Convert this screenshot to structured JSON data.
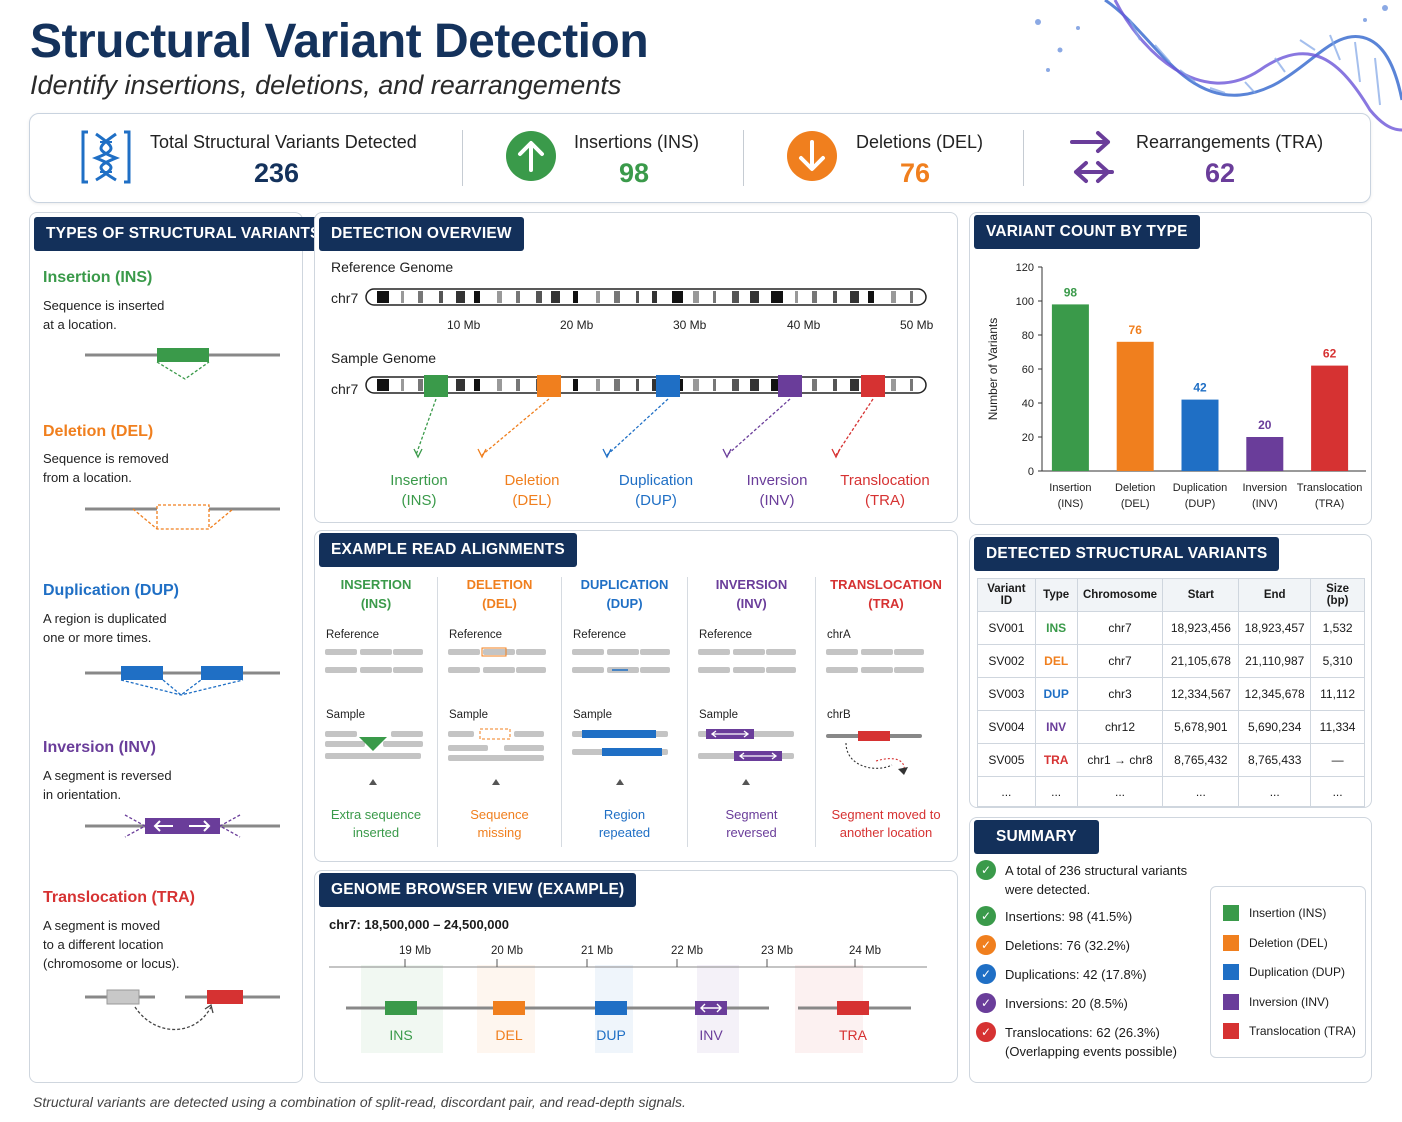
{
  "header": {
    "title": "Structural Variant Detection",
    "subtitle": "Identify insertions, deletions, and rearrangements"
  },
  "colors": {
    "navy": "#13305a",
    "ins": "#3a9a4a",
    "del": "#f07f1e",
    "dup": "#1f6fc5",
    "inv": "#6a3d9a",
    "tra": "#d63232"
  },
  "stats": [
    {
      "label": "Total Structural Variants Detected",
      "value": "236",
      "icon": "dna-icon"
    },
    {
      "label": "Insertions (INS)",
      "value": "98",
      "icon": "arrow-up-icon"
    },
    {
      "label": "Deletions (DEL)",
      "value": "76",
      "icon": "arrow-down-icon"
    },
    {
      "label": "Rearrangements (TRA)",
      "value": "62",
      "icon": "swap-arrows-icon"
    }
  ],
  "types_panel": {
    "title": "TYPES OF STRUCTURAL VARIANTS",
    "items": [
      {
        "name": "Insertion (INS)",
        "desc1": "Sequence is inserted",
        "desc2": "at a location.",
        "desc3": ""
      },
      {
        "name": "Deletion (DEL)",
        "desc1": "Sequence is removed",
        "desc2": "from a location.",
        "desc3": ""
      },
      {
        "name": "Duplication (DUP)",
        "desc1": "A region is duplicated",
        "desc2": "one or more times.",
        "desc3": ""
      },
      {
        "name": "Inversion (INV)",
        "desc1": "A segment is reversed",
        "desc2": "in orientation.",
        "desc3": ""
      },
      {
        "name": "Translocation (TRA)",
        "desc1": "A segment is moved",
        "desc2": "to a different location",
        "desc3": "(chromosome or locus)."
      }
    ]
  },
  "detection": {
    "title": "DETECTION OVERVIEW",
    "reference_label": "Reference Genome",
    "sample_label": "Sample Genome",
    "chrom": "chr7",
    "ticks": [
      "10 Mb",
      "20 Mb",
      "30 Mb",
      "40 Mb",
      "50 Mb"
    ],
    "events": [
      {
        "line1": "Insertion",
        "line2": "(INS)"
      },
      {
        "line1": "Deletion",
        "line2": "(DEL)"
      },
      {
        "line1": "Duplication",
        "line2": "(DUP)"
      },
      {
        "line1": "Inversion",
        "line2": "(INV)"
      },
      {
        "line1": "Translocation",
        "line2": "(TRA)"
      }
    ]
  },
  "reads": {
    "title": "EXAMPLE READ ALIGNMENTS",
    "columns": [
      {
        "h1": "INSERTION",
        "h2": "(INS)",
        "top": "Reference",
        "bottom": "Sample",
        "c1": "Extra sequence",
        "c2": "inserted"
      },
      {
        "h1": "DELETION",
        "h2": "(DEL)",
        "top": "Reference",
        "bottom": "Sample",
        "c1": "Sequence",
        "c2": "missing"
      },
      {
        "h1": "DUPLICATION",
        "h2": "(DUP)",
        "top": "Reference",
        "bottom": "Sample",
        "c1": "Region",
        "c2": "repeated"
      },
      {
        "h1": "INVERSION",
        "h2": "(INV)",
        "top": "Reference",
        "bottom": "Sample",
        "c1": "Segment",
        "c2": "reversed"
      },
      {
        "h1": "TRANSLOCATION",
        "h2": "(TRA)",
        "top": "chrA",
        "bottom": "chrB",
        "c1": "Segment moved to",
        "c2": "another location"
      }
    ]
  },
  "browser": {
    "title": "GENOME BROWSER VIEW (EXAMPLE)",
    "region": "chr7: 18,500,000 – 24,500,000",
    "ticks": [
      "19 Mb",
      "20 Mb",
      "21 Mb",
      "22 Mb",
      "23 Mb",
      "24 Mb"
    ],
    "tracks": [
      "INS",
      "DEL",
      "DUP",
      "INV",
      "TRA"
    ]
  },
  "chart_panel": {
    "title": "VARIANT COUNT BY TYPE"
  },
  "chart_data": {
    "type": "bar",
    "categories": [
      "Insertion (INS)",
      "Deletion (DEL)",
      "Duplication (DUP)",
      "Inversion (INV)",
      "Translocation (TRA)"
    ],
    "values": [
      98,
      76,
      42,
      20,
      62
    ],
    "ylabel": "Number of Variants",
    "ylim": [
      0,
      120
    ],
    "yticks": [
      0,
      20,
      40,
      60,
      80,
      100,
      120
    ],
    "colors": [
      "#3a9a4a",
      "#f07f1e",
      "#1f6fc5",
      "#6a3d9a",
      "#d63232"
    ],
    "grid": false
  },
  "table": {
    "title": "DETECTED STRUCTURAL VARIANTS",
    "headers": [
      "Variant ID",
      "Type",
      "Chromosome",
      "Start",
      "End",
      "Size (bp)"
    ],
    "rows": [
      [
        "SV001",
        "INS",
        "chr7",
        "18,923,456",
        "18,923,457",
        "1,532"
      ],
      [
        "SV002",
        "DEL",
        "chr7",
        "21,105,678",
        "21,110,987",
        "5,310"
      ],
      [
        "SV003",
        "DUP",
        "chr3",
        "12,334,567",
        "12,345,678",
        "11,112"
      ],
      [
        "SV004",
        "INV",
        "chr12",
        "5,678,901",
        "5,690,234",
        "11,334"
      ],
      [
        "SV005",
        "TRA",
        "chr1 → chr8",
        "8,765,432",
        "8,765,433",
        "—"
      ],
      [
        "...",
        "...",
        "...",
        "...",
        "...",
        "..."
      ]
    ]
  },
  "summary": {
    "title": "SUMMARY",
    "items": [
      {
        "l1": "A total of 236 structural variants",
        "l2": "were detected."
      },
      {
        "l1": "Insertions: 98 (41.5%)",
        "l2": ""
      },
      {
        "l1": "Deletions: 76 (32.2%)",
        "l2": ""
      },
      {
        "l1": "Duplications: 42 (17.8%)",
        "l2": ""
      },
      {
        "l1": "Inversions: 20 (8.5%)",
        "l2": ""
      },
      {
        "l1": "Translocations: 62 (26.3%)",
        "l2": "(Overlapping events possible)"
      }
    ],
    "legend": [
      "Insertion (INS)",
      "Deletion (DEL)",
      "Duplication (DUP)",
      "Inversion (INV)",
      "Translocation (TRA)"
    ]
  },
  "footer": "Structural variants are detected using a combination of split-read, discordant pair, and read-depth signals."
}
